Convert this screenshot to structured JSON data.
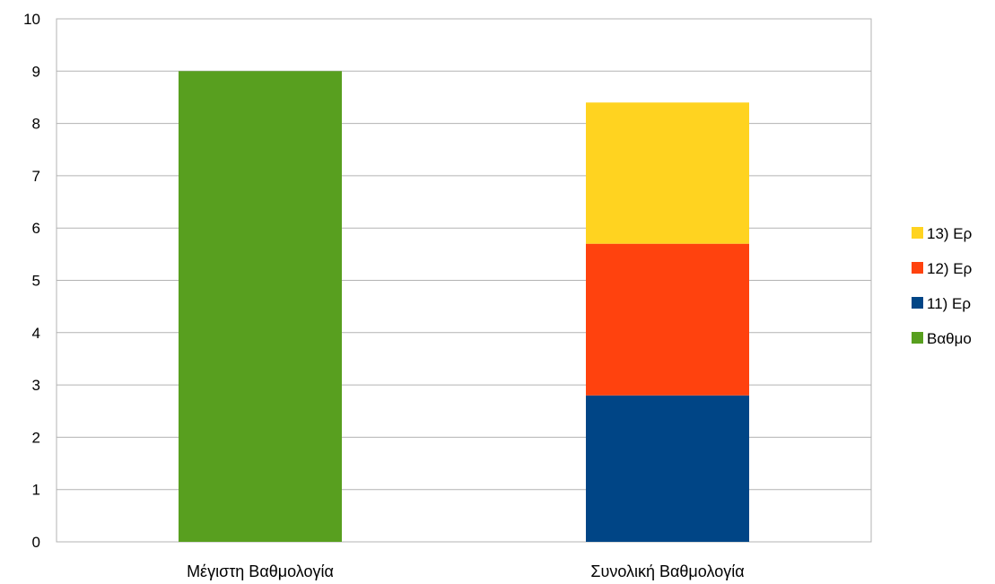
{
  "chart_data": {
    "type": "bar",
    "stacked": true,
    "categories": [
      "Μέγιστη Βαθμολογία",
      "Συνολική Βαθμολογία"
    ],
    "series": [
      {
        "name": "Βαθμο",
        "color": "#589f1f",
        "values": [
          9,
          0
        ]
      },
      {
        "name": "11) Ερ",
        "color": "#004586",
        "values": [
          0,
          2.8
        ]
      },
      {
        "name": "12) Ερ",
        "color": "#ff420e",
        "values": [
          0,
          2.9
        ]
      },
      {
        "name": "13) Ερ",
        "color": "#ffd320",
        "values": [
          0,
          2.7
        ]
      }
    ],
    "legend_order": [
      "13) Ερ",
      "12) Ερ",
      "11) Ερ",
      "Βαθμο"
    ],
    "ylim": [
      0,
      10
    ],
    "yticks": [
      0,
      1,
      2,
      3,
      4,
      5,
      6,
      7,
      8,
      9,
      10
    ],
    "grid": true,
    "legend_position": "right",
    "title": "",
    "xlabel": "",
    "ylabel": ""
  }
}
